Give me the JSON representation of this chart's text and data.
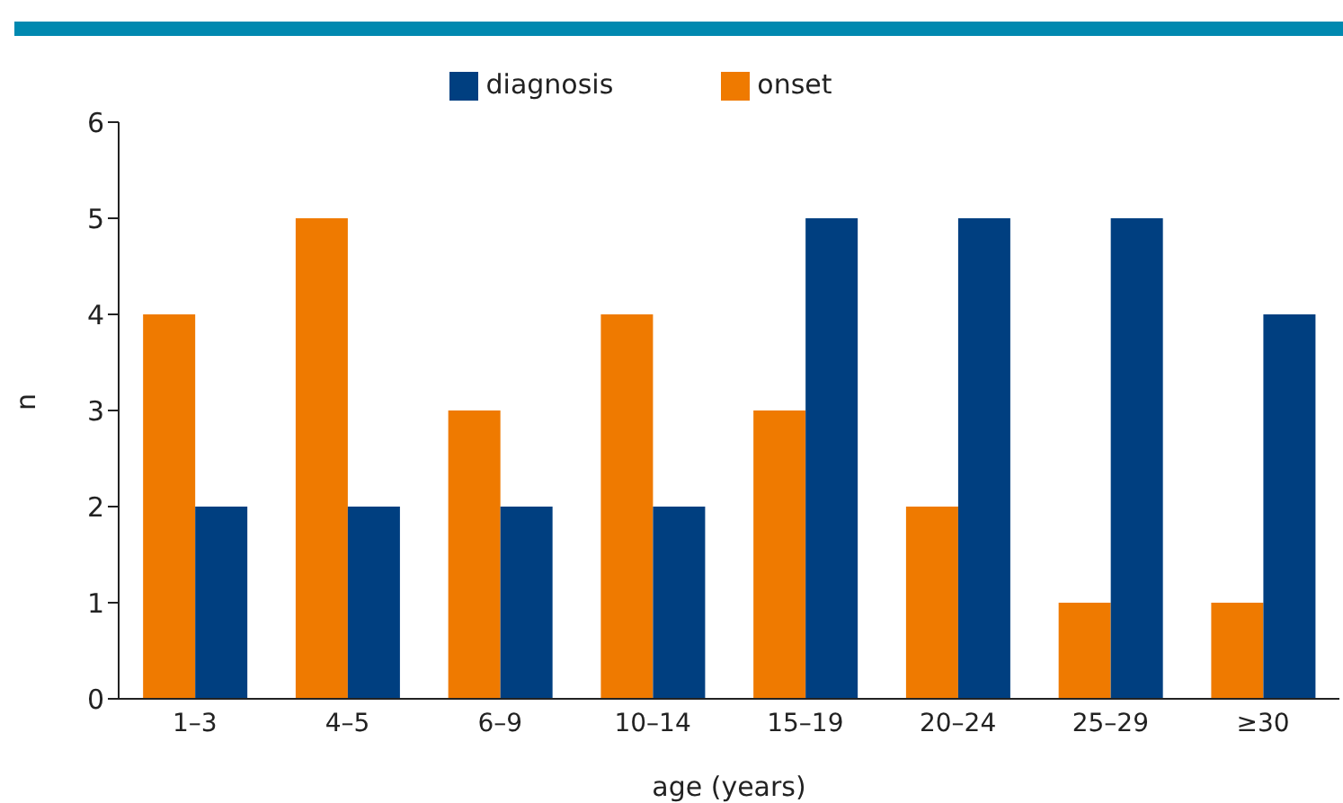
{
  "chart_data": {
    "type": "bar",
    "xlabel": "age (years)",
    "ylabel": "n",
    "categories": [
      "1–3",
      "4–5",
      "6–9",
      "10–14",
      "15–19",
      "20–24",
      "25–29",
      "≥30"
    ],
    "series": [
      {
        "name": "onset",
        "color": "#ef7a00",
        "values": [
          4,
          5,
          3,
          4,
          3,
          2,
          1,
          1
        ]
      },
      {
        "name": "diagnosis",
        "color": "#003f80",
        "values": [
          2,
          2,
          2,
          2,
          5,
          5,
          5,
          4
        ]
      }
    ],
    "ylim": [
      0,
      6
    ],
    "yticks": [
      0,
      1,
      2,
      3,
      4,
      5,
      6
    ],
    "legend": "top",
    "grid": false
  }
}
